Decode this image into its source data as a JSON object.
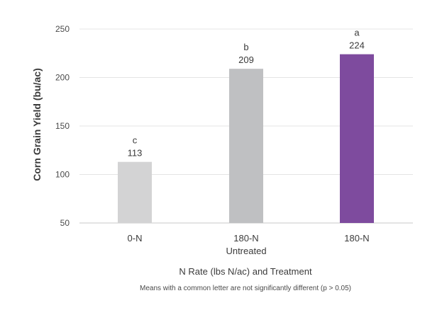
{
  "chart_data": {
    "type": "bar",
    "categories": [
      "0-N",
      "180-N",
      "180-N"
    ],
    "category_sublabels": [
      "",
      "Untreated",
      ""
    ],
    "values": [
      113,
      209,
      224
    ],
    "letters": [
      "c",
      "b",
      "a"
    ],
    "bar_colors": [
      "#d3d3d4",
      "#bfc0c2",
      "#7e4b9e"
    ],
    "ylabel": "Corn Grain Yield (bu/ac)",
    "xlabel": "N Rate (lbs N/ac) and Treatment",
    "note": "Means with a common letter are not significantly different (p > 0.05)",
    "ylim": [
      50,
      250
    ],
    "yticks": [
      50,
      100,
      150,
      200,
      250
    ],
    "grid": true
  }
}
